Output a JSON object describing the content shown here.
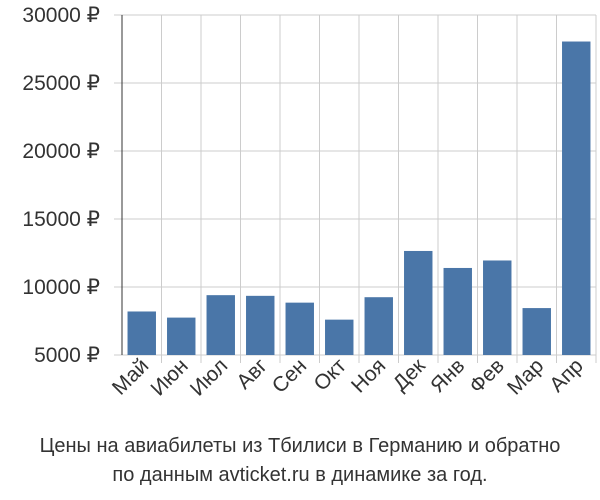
{
  "chart_data": {
    "type": "bar",
    "categories": [
      "Май",
      "Июн",
      "Июл",
      "Авг",
      "Сен",
      "Окт",
      "Ноя",
      "Дек",
      "Янв",
      "Фев",
      "Мар",
      "Апр"
    ],
    "values": [
      8200,
      7750,
      9400,
      9350,
      8850,
      7600,
      9250,
      12650,
      11400,
      11950,
      8450,
      28050
    ],
    "ylim": [
      5000,
      30000
    ],
    "yticks": [
      5000,
      10000,
      15000,
      20000,
      25000,
      30000
    ],
    "ytick_labels": [
      "5000 ₽",
      "10000 ₽",
      "15000 ₽",
      "20000 ₽",
      "25000 ₽",
      "30000 ₽"
    ],
    "grid": true,
    "bar_color": "#4a76a8",
    "grid_color": "#cccccc"
  },
  "caption": {
    "line1": "Цены на авиабилеты из Тбилиси в Германию и обратно",
    "line2": "по данным avticket.ru в динамике за год."
  }
}
